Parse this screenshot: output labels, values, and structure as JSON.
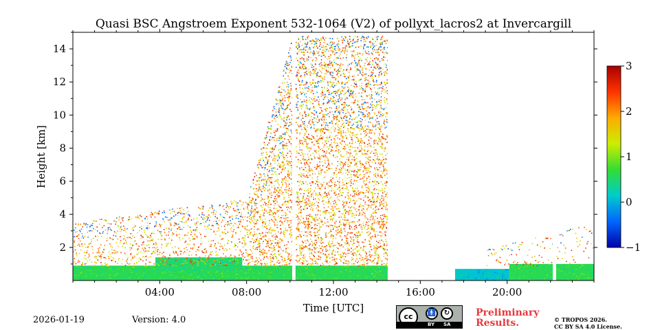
{
  "header": {
    "title": "Quasi BSC Angstroem Exponent 532-1064 (V2) of pollyxt_lacros2 at Invercargill"
  },
  "footer": {
    "date": "2026-01-19",
    "version": "Version: 4.0",
    "preliminary_line1": "Preliminary",
    "preliminary_line2": "Results.",
    "copyright_line1": "© TROPOS 2026.",
    "copyright_line2": "CC BY SA 4.0 License.",
    "cc_badge": {
      "main": "cc",
      "by": "BY",
      "sa": "SA",
      "by_icon": "person-icon",
      "sa_icon": "share-alike-icon"
    }
  },
  "chart_data": {
    "type": "heatmap",
    "title": "Quasi BSC Angstroem Exponent 532-1064 (V2) of pollyxt_lacros2 at Invercargill",
    "xlabel": "Time [UTC]",
    "ylabel": "Height [km]",
    "xlim": [
      0,
      24
    ],
    "ylim": [
      0,
      15
    ],
    "x_ticks": [
      4,
      8,
      12,
      16,
      20
    ],
    "x_tick_labels": [
      "04:00",
      "08:00",
      "12:00",
      "16:00",
      "20:00"
    ],
    "y_ticks": [
      2,
      4,
      6,
      8,
      10,
      12,
      14
    ],
    "y_tick_labels": [
      "2",
      "4",
      "6",
      "8",
      "10",
      "12",
      "14"
    ],
    "colorbar": {
      "range": [
        -1,
        3
      ],
      "ticks": [
        -1,
        0,
        1,
        2,
        3
      ],
      "tick_labels": [
        "−1",
        "0",
        "1",
        "2",
        "3"
      ],
      "colormap": "jet",
      "colors": [
        "#0000a8",
        "#0066ff",
        "#00cccc",
        "#33dd33",
        "#ccee00",
        "#ffaa00",
        "#ff3300",
        "#a80000"
      ]
    },
    "data_gaps_hours": [
      [
        10.1,
        10.25
      ],
      [
        14.5,
        17.6
      ],
      [
        22.1,
        22.25
      ]
    ],
    "regions": [
      {
        "name": "boundary-layer",
        "t0": 0.0,
        "t1": 10.1,
        "h0": 0.0,
        "h1": 0.9,
        "value": 0.6
      },
      {
        "name": "aerosol-layer",
        "t0": 3.8,
        "t1": 7.8,
        "h0": 0.6,
        "h1": 1.4,
        "value": 0.5
      },
      {
        "name": "boundary-layer",
        "t0": 10.25,
        "t1": 14.5,
        "h0": 0.0,
        "h1": 0.9,
        "value": 0.6
      },
      {
        "name": "low-layer",
        "t0": 17.6,
        "t1": 20.1,
        "h0": 0.0,
        "h1": 0.7,
        "value": 0.1
      },
      {
        "name": "low-layer",
        "t0": 20.1,
        "t1": 22.1,
        "h0": 0.0,
        "h1": 1.0,
        "value": 0.6
      },
      {
        "name": "low-layer",
        "t0": 22.25,
        "t1": 24.0,
        "h0": 0.0,
        "h1": 1.0,
        "value": 0.6
      }
    ],
    "noise": [
      {
        "t0": 0.0,
        "t1": 8.0,
        "hmax_start": 3.5,
        "hmax_end": 5.0,
        "density": 0.35
      },
      {
        "t0": 8.0,
        "t1": 10.1,
        "hmax_start": 5.0,
        "hmax_end": 14.8,
        "density": 0.6
      },
      {
        "t0": 10.25,
        "t1": 14.5,
        "hmax_start": 14.8,
        "hmax_end": 14.8,
        "density": 0.6
      },
      {
        "t0": 17.6,
        "t1": 24.0,
        "hmax_start": 1.5,
        "hmax_end": 3.5,
        "density": 0.12
      }
    ]
  }
}
